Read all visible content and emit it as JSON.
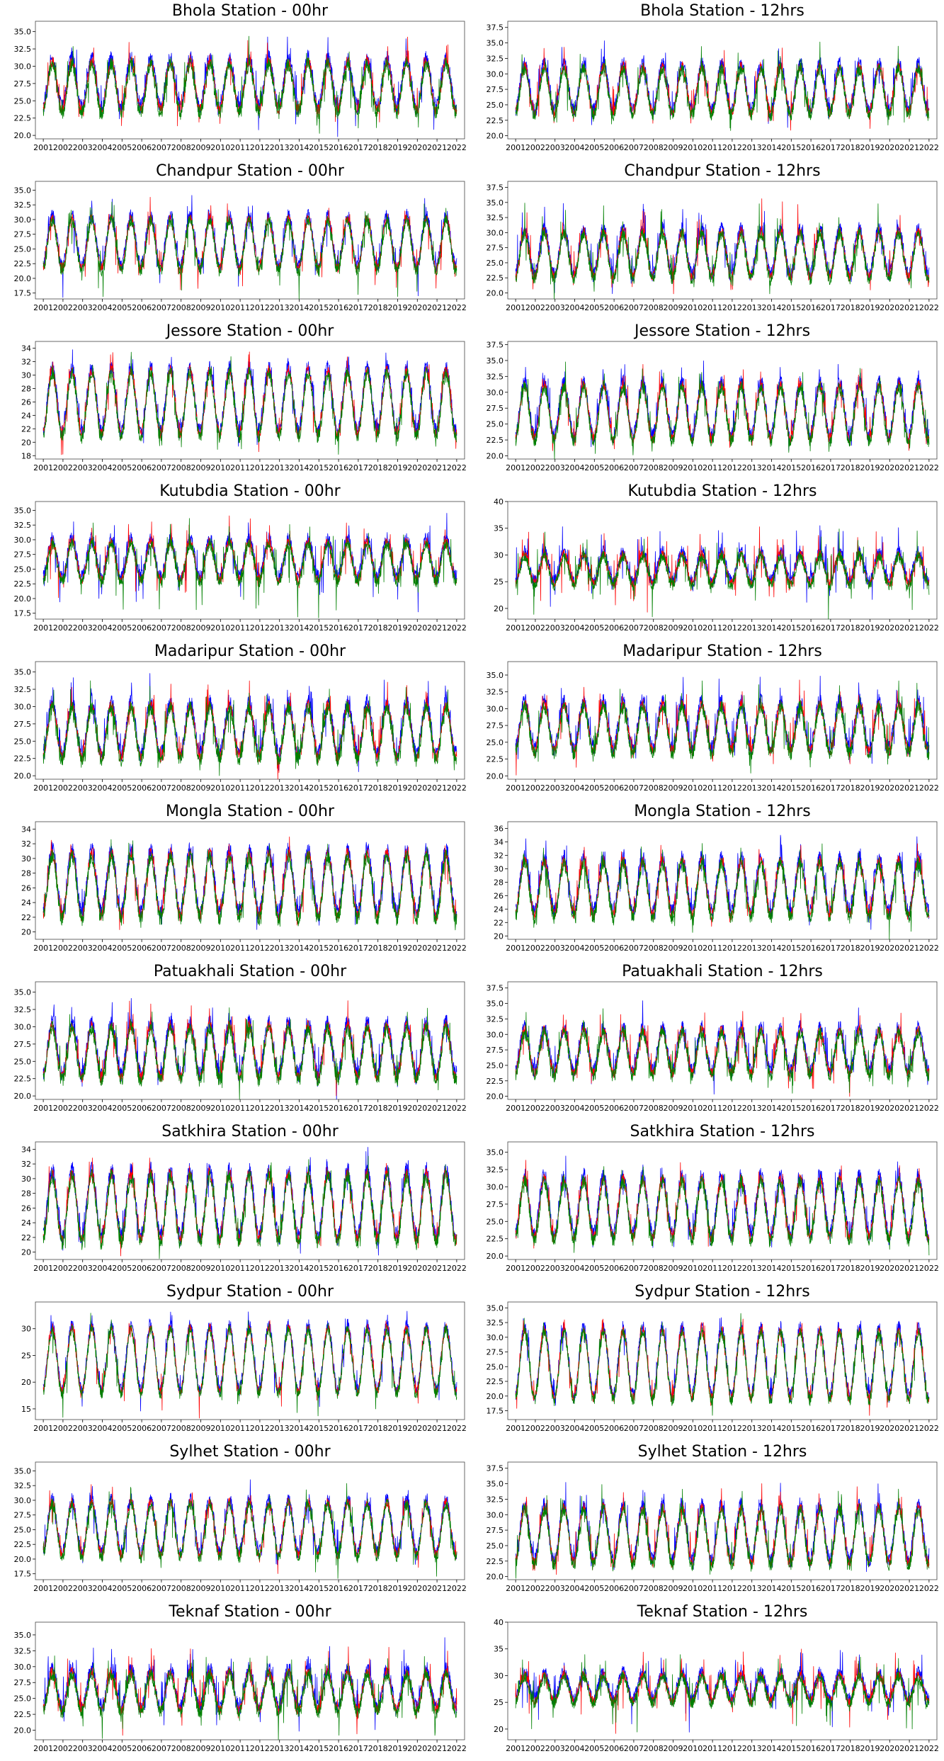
{
  "figure": {
    "series_colors": [
      "#0000ff",
      "#ff0000",
      "#008000"
    ]
  },
  "chart_data": [
    {
      "type": "line",
      "title": "Bhola Station - 00hr",
      "x_ticks": [
        "2001",
        "2002",
        "2003",
        "2004",
        "2005",
        "2006",
        "2007",
        "2008",
        "2009",
        "2010",
        "2011",
        "2012",
        "2013",
        "2014",
        "2015",
        "2016",
        "2017",
        "2018",
        "2019",
        "2020",
        "2021",
        "2022"
      ],
      "y_ticks": [
        "20.0",
        "22.5",
        "25.0",
        "27.5",
        "30.0",
        "32.5",
        "35.0"
      ],
      "ylim": [
        19.5,
        36.5
      ],
      "low": 23.5,
      "high": 30.5,
      "spike": 35.5,
      "series": [
        {
          "color": "#0000ff"
        },
        {
          "color": "#ff0000"
        },
        {
          "color": "#008000"
        }
      ]
    },
    {
      "type": "line",
      "title": "Bhola Station - 12hrs",
      "x_ticks": [
        "2001",
        "2002",
        "2003",
        "2004",
        "2005",
        "2006",
        "2007",
        "2008",
        "2009",
        "2010",
        "2011",
        "2012",
        "2013",
        "2014",
        "2015",
        "2016",
        "2017",
        "2018",
        "2019",
        "2020",
        "2021",
        "2022"
      ],
      "y_ticks": [
        "20.0",
        "22.5",
        "25.0",
        "27.5",
        "30.0",
        "32.5",
        "35.0",
        "37.5"
      ],
      "ylim": [
        19.5,
        38.5
      ],
      "low": 23.5,
      "high": 31,
      "spike": 36.5,
      "series": [
        {
          "color": "#0000ff"
        },
        {
          "color": "#ff0000"
        },
        {
          "color": "#008000"
        }
      ]
    },
    {
      "type": "line",
      "title": "Chandpur Station - 00hr",
      "x_ticks": [
        "2001",
        "2002",
        "2003",
        "2004",
        "2005",
        "2006",
        "2007",
        "2008",
        "2009",
        "2010",
        "2011",
        "2012",
        "2013",
        "2014",
        "2015",
        "2016",
        "2017",
        "2018",
        "2019",
        "2020",
        "2021",
        "2022"
      ],
      "y_ticks": [
        "17.5",
        "20.0",
        "22.5",
        "25.0",
        "27.5",
        "30.0",
        "32.5",
        "35.0"
      ],
      "ylim": [
        16.5,
        36.5
      ],
      "low": 21.5,
      "high": 30,
      "spike": 35,
      "series": [
        {
          "color": "#0000ff"
        },
        {
          "color": "#ff0000"
        },
        {
          "color": "#008000"
        }
      ]
    },
    {
      "type": "line",
      "title": "Chandpur Station - 12hrs",
      "x_ticks": [
        "2001",
        "2002",
        "2003",
        "2004",
        "2005",
        "2006",
        "2007",
        "2008",
        "2009",
        "2010",
        "2011",
        "2012",
        "2013",
        "2014",
        "2015",
        "2016",
        "2017",
        "2018",
        "2019",
        "2020",
        "2021",
        "2022"
      ],
      "y_ticks": [
        "20.0",
        "22.5",
        "25.0",
        "27.5",
        "30.0",
        "32.5",
        "35.0",
        "37.5"
      ],
      "ylim": [
        19,
        38.5
      ],
      "low": 22.5,
      "high": 30,
      "spike": 37,
      "series": [
        {
          "color": "#0000ff"
        },
        {
          "color": "#ff0000"
        },
        {
          "color": "#008000"
        }
      ]
    },
    {
      "type": "line",
      "title": "Jessore Station - 00hr",
      "x_ticks": [
        "2001",
        "2002",
        "2003",
        "2004",
        "2005",
        "2006",
        "2007",
        "2008",
        "2009",
        "2010",
        "2011",
        "2012",
        "2013",
        "2014",
        "2015",
        "2016",
        "2017",
        "2018",
        "2019",
        "2020",
        "2021",
        "2022"
      ],
      "y_ticks": [
        "18",
        "20",
        "22",
        "24",
        "26",
        "28",
        "30",
        "32",
        "34"
      ],
      "ylim": [
        17.5,
        35
      ],
      "low": 21,
      "high": 30.5,
      "spike": 34,
      "series": [
        {
          "color": "#0000ff"
        },
        {
          "color": "#ff0000"
        },
        {
          "color": "#008000"
        }
      ]
    },
    {
      "type": "line",
      "title": "Jessore Station - 12hrs",
      "x_ticks": [
        "2001",
        "2002",
        "2003",
        "2004",
        "2005",
        "2006",
        "2007",
        "2008",
        "2009",
        "2010",
        "2011",
        "2012",
        "2013",
        "2014",
        "2015",
        "2016",
        "2017",
        "2018",
        "2019",
        "2020",
        "2021",
        "2022"
      ],
      "y_ticks": [
        "20.0",
        "22.5",
        "25.0",
        "27.5",
        "30.0",
        "32.5",
        "35.0",
        "37.5"
      ],
      "ylim": [
        19.5,
        38
      ],
      "low": 22.5,
      "high": 31,
      "spike": 36,
      "series": [
        {
          "color": "#0000ff"
        },
        {
          "color": "#ff0000"
        },
        {
          "color": "#008000"
        }
      ]
    },
    {
      "type": "line",
      "title": "Kutubdia Station - 00hr",
      "x_ticks": [
        "2001",
        "2002",
        "2003",
        "2004",
        "2005",
        "2006",
        "2007",
        "2008",
        "2009",
        "2010",
        "2011",
        "2012",
        "2013",
        "2014",
        "2015",
        "2016",
        "2017",
        "2018",
        "2019",
        "2020",
        "2021",
        "2022"
      ],
      "y_ticks": [
        "17.5",
        "20.0",
        "22.5",
        "25.0",
        "27.5",
        "30.0",
        "32.5",
        "35.0"
      ],
      "ylim": [
        16.5,
        36.5
      ],
      "low": 23,
      "high": 29.5,
      "spike": 35.5,
      "series": [
        {
          "color": "#0000ff"
        },
        {
          "color": "#ff0000"
        },
        {
          "color": "#008000"
        }
      ]
    },
    {
      "type": "line",
      "title": "Kutubdia Station - 12hrs",
      "x_ticks": [
        "2001",
        "2002",
        "2003",
        "2004",
        "2005",
        "2006",
        "2007",
        "2008",
        "2009",
        "2010",
        "2011",
        "2012",
        "2013",
        "2014",
        "2015",
        "2016",
        "2017",
        "2018",
        "2019",
        "2020",
        "2021",
        "2022"
      ],
      "y_ticks": [
        "20",
        "25",
        "30",
        "35",
        "40"
      ],
      "ylim": [
        18,
        40
      ],
      "low": 24.5,
      "high": 30,
      "spike": 38,
      "series": [
        {
          "color": "#0000ff"
        },
        {
          "color": "#ff0000"
        },
        {
          "color": "#008000"
        }
      ]
    },
    {
      "type": "line",
      "title": "Madaripur Station - 00hr",
      "x_ticks": [
        "2001",
        "2002",
        "2003",
        "2004",
        "2005",
        "2006",
        "2007",
        "2008",
        "2009",
        "2010",
        "2011",
        "2012",
        "2013",
        "2014",
        "2015",
        "2016",
        "2017",
        "2018",
        "2019",
        "2020",
        "2021",
        "2022"
      ],
      "y_ticks": [
        "20.0",
        "22.5",
        "25.0",
        "27.5",
        "30.0",
        "32.5",
        "35.0"
      ],
      "ylim": [
        19.5,
        36.5
      ],
      "low": 22.5,
      "high": 30,
      "spike": 35.5,
      "series": [
        {
          "color": "#0000ff"
        },
        {
          "color": "#ff0000"
        },
        {
          "color": "#008000"
        }
      ]
    },
    {
      "type": "line",
      "title": "Madaripur Station - 12hrs",
      "x_ticks": [
        "2001",
        "2002",
        "2003",
        "2004",
        "2005",
        "2006",
        "2007",
        "2008",
        "2009",
        "2010",
        "2011",
        "2012",
        "2013",
        "2014",
        "2015",
        "2016",
        "2017",
        "2018",
        "2019",
        "2020",
        "2021",
        "2022"
      ],
      "y_ticks": [
        "20.0",
        "22.5",
        "25.0",
        "27.5",
        "30.0",
        "32.5",
        "35.0"
      ],
      "ylim": [
        19.5,
        37
      ],
      "low": 23.5,
      "high": 30.5,
      "spike": 36,
      "series": [
        {
          "color": "#0000ff"
        },
        {
          "color": "#ff0000"
        },
        {
          "color": "#008000"
        }
      ]
    },
    {
      "type": "line",
      "title": "Mongla Station - 00hr",
      "x_ticks": [
        "2001",
        "2002",
        "2003",
        "2004",
        "2005",
        "2006",
        "2007",
        "2008",
        "2009",
        "2010",
        "2011",
        "2012",
        "2013",
        "2014",
        "2015",
        "2016",
        "2017",
        "2018",
        "2019",
        "2020",
        "2021",
        "2022"
      ],
      "y_ticks": [
        "20",
        "22",
        "24",
        "26",
        "28",
        "30",
        "32",
        "34"
      ],
      "ylim": [
        19,
        35
      ],
      "low": 22,
      "high": 30.5,
      "spike": 34,
      "series": [
        {
          "color": "#0000ff"
        },
        {
          "color": "#ff0000"
        },
        {
          "color": "#008000"
        }
      ]
    },
    {
      "type": "line",
      "title": "Mongla Station - 12hrs",
      "x_ticks": [
        "2001",
        "2002",
        "2003",
        "2004",
        "2005",
        "2006",
        "2007",
        "2008",
        "2009",
        "2010",
        "2011",
        "2012",
        "2013",
        "2014",
        "2015",
        "2016",
        "2017",
        "2018",
        "2019",
        "2020",
        "2021",
        "2022"
      ],
      "y_ticks": [
        "20",
        "22",
        "24",
        "26",
        "28",
        "30",
        "32",
        "34",
        "36"
      ],
      "ylim": [
        19.5,
        37
      ],
      "low": 23,
      "high": 31,
      "spike": 35.5,
      "series": [
        {
          "color": "#0000ff"
        },
        {
          "color": "#ff0000"
        },
        {
          "color": "#008000"
        }
      ]
    },
    {
      "type": "line",
      "title": "Patuakhali Station - 00hr",
      "x_ticks": [
        "2001",
        "2002",
        "2003",
        "2004",
        "2005",
        "2006",
        "2007",
        "2008",
        "2009",
        "2010",
        "2011",
        "2012",
        "2013",
        "2014",
        "2015",
        "2016",
        "2017",
        "2018",
        "2019",
        "2020",
        "2021",
        "2022"
      ],
      "y_ticks": [
        "20.0",
        "22.5",
        "25.0",
        "27.5",
        "30.0",
        "32.5",
        "35.0"
      ],
      "ylim": [
        19.5,
        36.5
      ],
      "low": 22.5,
      "high": 30,
      "spike": 35,
      "series": [
        {
          "color": "#0000ff"
        },
        {
          "color": "#ff0000"
        },
        {
          "color": "#008000"
        }
      ]
    },
    {
      "type": "line",
      "title": "Patuakhali Station - 12hrs",
      "x_ticks": [
        "2001",
        "2002",
        "2003",
        "2004",
        "2005",
        "2006",
        "2007",
        "2008",
        "2009",
        "2010",
        "2011",
        "2012",
        "2013",
        "2014",
        "2015",
        "2016",
        "2017",
        "2018",
        "2019",
        "2020",
        "2021",
        "2022"
      ],
      "y_ticks": [
        "20.0",
        "22.5",
        "25.0",
        "27.5",
        "30.0",
        "32.5",
        "35.0",
        "37.5"
      ],
      "ylim": [
        19.5,
        38.5
      ],
      "low": 23.5,
      "high": 30.5,
      "spike": 37,
      "series": [
        {
          "color": "#0000ff"
        },
        {
          "color": "#ff0000"
        },
        {
          "color": "#008000"
        }
      ]
    },
    {
      "type": "line",
      "title": "Satkhira Station - 00hr",
      "x_ticks": [
        "2001",
        "2002",
        "2003",
        "2004",
        "2005",
        "2006",
        "2007",
        "2008",
        "2009",
        "2010",
        "2011",
        "2012",
        "2013",
        "2014",
        "2015",
        "2016",
        "2017",
        "2018",
        "2019",
        "2020",
        "2021",
        "2022"
      ],
      "y_ticks": [
        "20",
        "22",
        "24",
        "26",
        "28",
        "30",
        "32",
        "34"
      ],
      "ylim": [
        19,
        35
      ],
      "low": 21.5,
      "high": 30.5,
      "spike": 34,
      "series": [
        {
          "color": "#0000ff"
        },
        {
          "color": "#ff0000"
        },
        {
          "color": "#008000"
        }
      ]
    },
    {
      "type": "line",
      "title": "Satkhira Station - 12hrs",
      "x_ticks": [
        "2001",
        "2002",
        "2003",
        "2004",
        "2005",
        "2006",
        "2007",
        "2008",
        "2009",
        "2010",
        "2011",
        "2012",
        "2013",
        "2014",
        "2015",
        "2016",
        "2017",
        "2018",
        "2019",
        "2020",
        "2021",
        "2022"
      ],
      "y_ticks": [
        "20.0",
        "22.5",
        "25.0",
        "27.5",
        "30.0",
        "32.5",
        "35.0"
      ],
      "ylim": [
        19.5,
        36.5
      ],
      "low": 22.5,
      "high": 31,
      "spike": 35.5,
      "series": [
        {
          "color": "#0000ff"
        },
        {
          "color": "#ff0000"
        },
        {
          "color": "#008000"
        }
      ]
    },
    {
      "type": "line",
      "title": "Sydpur Station - 00hr",
      "x_ticks": [
        "2001",
        "2002",
        "2003",
        "2004",
        "2005",
        "2006",
        "2007",
        "2008",
        "2009",
        "2010",
        "2011",
        "2012",
        "2013",
        "2014",
        "2015",
        "2016",
        "2017",
        "2018",
        "2019",
        "2020",
        "2021",
        "2022"
      ],
      "y_ticks": [
        "15",
        "20",
        "25",
        "30"
      ],
      "ylim": [
        13,
        35
      ],
      "low": 18,
      "high": 30,
      "spike": 34,
      "series": [
        {
          "color": "#0000ff"
        },
        {
          "color": "#ff0000"
        },
        {
          "color": "#008000"
        }
      ]
    },
    {
      "type": "line",
      "title": "Sydpur Station - 12hrs",
      "x_ticks": [
        "2001",
        "2002",
        "2003",
        "2004",
        "2005",
        "2006",
        "2007",
        "2008",
        "2009",
        "2010",
        "2011",
        "2012",
        "2013",
        "2014",
        "2015",
        "2016",
        "2017",
        "2018",
        "2019",
        "2020",
        "2021",
        "2022"
      ],
      "y_ticks": [
        "17.5",
        "20.0",
        "22.5",
        "25.0",
        "27.5",
        "30.0",
        "32.5",
        "35.0"
      ],
      "ylim": [
        16,
        36
      ],
      "low": 19.5,
      "high": 31,
      "spike": 34.5,
      "series": [
        {
          "color": "#0000ff"
        },
        {
          "color": "#ff0000"
        },
        {
          "color": "#008000"
        }
      ]
    },
    {
      "type": "line",
      "title": "Sylhet Station - 00hr",
      "x_ticks": [
        "2001",
        "2002",
        "2003",
        "2004",
        "2005",
        "2006",
        "2007",
        "2008",
        "2009",
        "2010",
        "2011",
        "2012",
        "2013",
        "2014",
        "2015",
        "2016",
        "2017",
        "2018",
        "2019",
        "2020",
        "2021",
        "2022"
      ],
      "y_ticks": [
        "17.5",
        "20.0",
        "22.5",
        "25.0",
        "27.5",
        "30.0",
        "32.5",
        "35.0"
      ],
      "ylim": [
        16.5,
        36.5
      ],
      "low": 20.5,
      "high": 29.5,
      "spike": 34,
      "series": [
        {
          "color": "#0000ff"
        },
        {
          "color": "#ff0000"
        },
        {
          "color": "#008000"
        }
      ]
    },
    {
      "type": "line",
      "title": "Sylhet Station - 12hrs",
      "x_ticks": [
        "2001",
        "2002",
        "2003",
        "2004",
        "2005",
        "2006",
        "2007",
        "2008",
        "2009",
        "2010",
        "2011",
        "2012",
        "2013",
        "2014",
        "2015",
        "2016",
        "2017",
        "2018",
        "2019",
        "2020",
        "2021",
        "2022"
      ],
      "y_ticks": [
        "20.0",
        "22.5",
        "25.0",
        "27.5",
        "30.0",
        "32.5",
        "35.0",
        "37.5"
      ],
      "ylim": [
        19.5,
        38.5
      ],
      "low": 22,
      "high": 31,
      "spike": 37,
      "series": [
        {
          "color": "#0000ff"
        },
        {
          "color": "#ff0000"
        },
        {
          "color": "#008000"
        }
      ]
    },
    {
      "type": "line",
      "title": "Teknaf Station - 00hr",
      "x_ticks": [
        "2001",
        "2002",
        "2003",
        "2004",
        "2005",
        "2006",
        "2007",
        "2008",
        "2009",
        "2010",
        "2011",
        "2012",
        "2013",
        "2014",
        "2015",
        "2016",
        "2017",
        "2018",
        "2019",
        "2020",
        "2021",
        "2022"
      ],
      "y_ticks": [
        "20.0",
        "22.5",
        "25.0",
        "27.5",
        "30.0",
        "32.5",
        "35.0"
      ],
      "ylim": [
        18.5,
        37
      ],
      "low": 23,
      "high": 29,
      "spike": 35,
      "series": [
        {
          "color": "#0000ff"
        },
        {
          "color": "#ff0000"
        },
        {
          "color": "#008000"
        }
      ]
    },
    {
      "type": "line",
      "title": "Teknaf Station - 12hrs",
      "x_ticks": [
        "2001",
        "2002",
        "2003",
        "2004",
        "2005",
        "2006",
        "2007",
        "2008",
        "2009",
        "2010",
        "2011",
        "2012",
        "2013",
        "2014",
        "2015",
        "2016",
        "2017",
        "2018",
        "2019",
        "2020",
        "2021",
        "2022"
      ],
      "y_ticks": [
        "20",
        "25",
        "30",
        "35",
        "40"
      ],
      "ylim": [
        18,
        40
      ],
      "low": 25,
      "high": 30,
      "spike": 37,
      "series": [
        {
          "color": "#0000ff"
        },
        {
          "color": "#ff0000"
        },
        {
          "color": "#008000"
        }
      ]
    }
  ]
}
